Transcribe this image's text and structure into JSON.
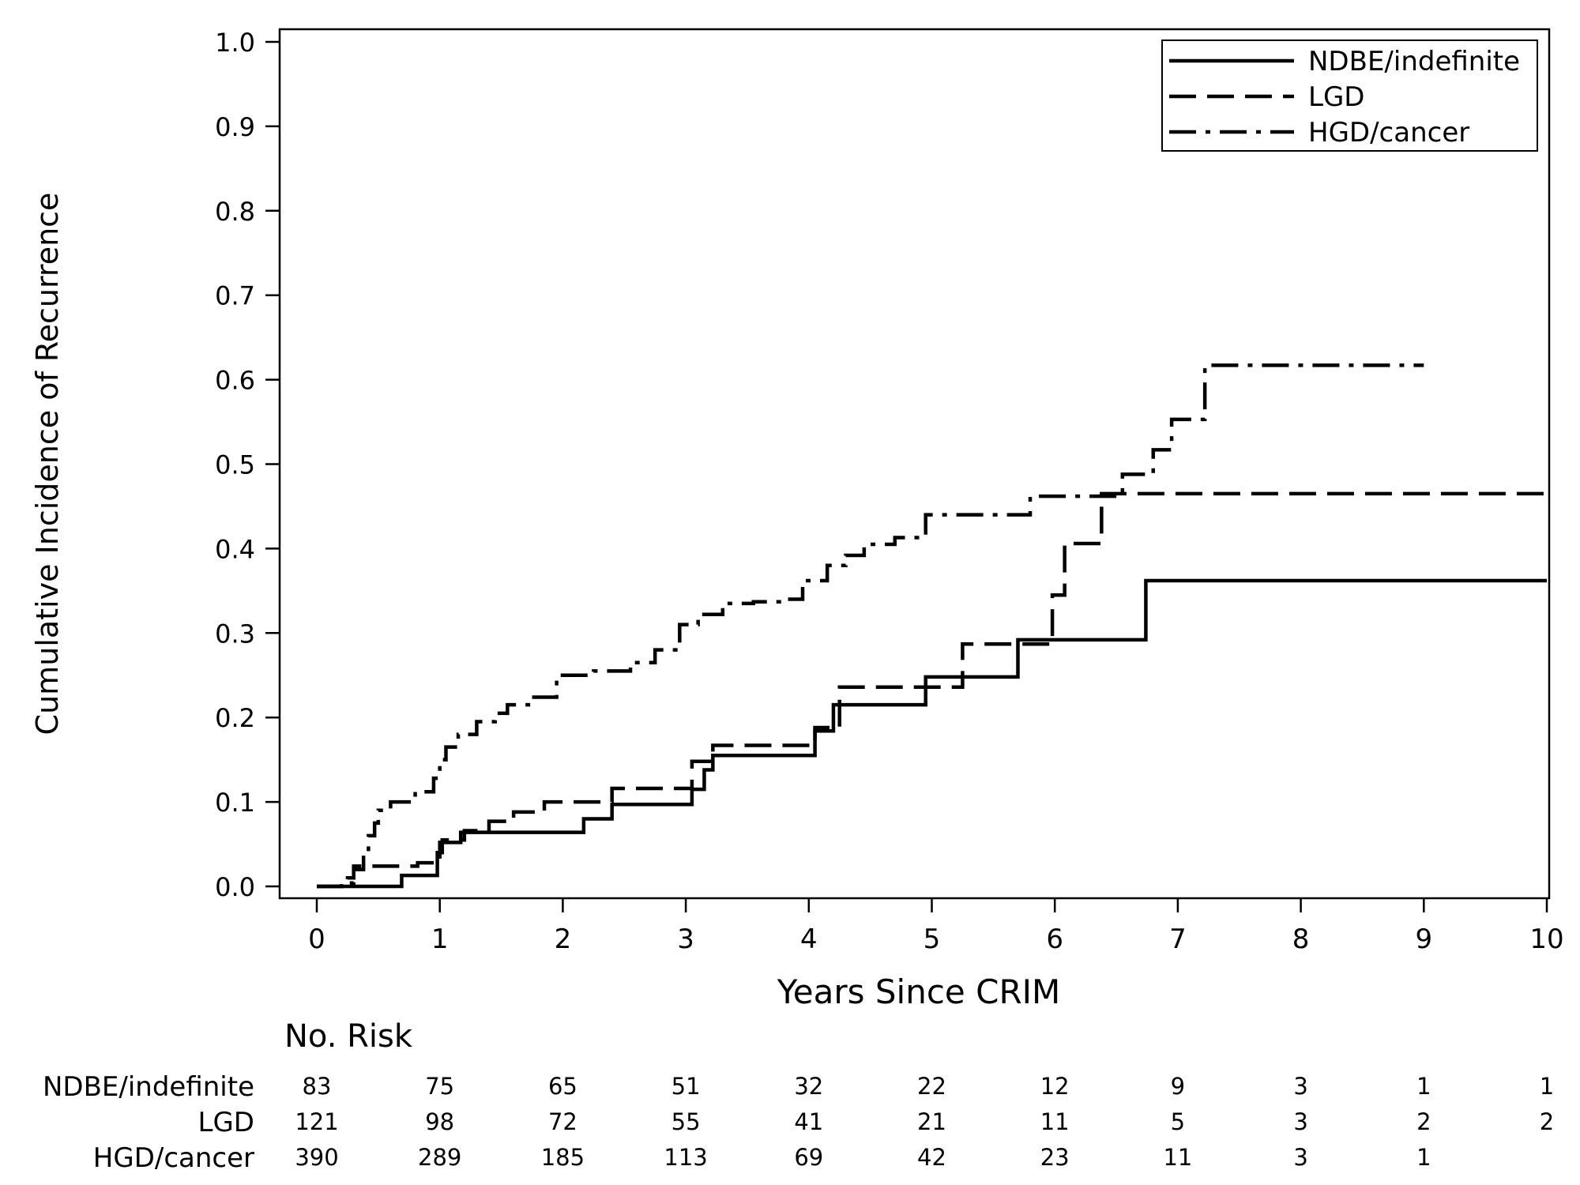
{
  "chart_data": {
    "type": "line",
    "step": true,
    "xlabel": "Years Since CRIM",
    "ylabel": "Cumulative Incidence of Recurrence",
    "xlim": [
      0,
      10
    ],
    "ylim": [
      0,
      1
    ],
    "xticks": [
      "0",
      "1",
      "2",
      "3",
      "4",
      "5",
      "6",
      "7",
      "8",
      "9",
      "10"
    ],
    "yticks": [
      "0.0",
      "0.1",
      "0.2",
      "0.3",
      "0.4",
      "0.5",
      "0.6",
      "0.7",
      "0.8",
      "0.9",
      "1.0"
    ],
    "grid": false,
    "legend_position": "top-right",
    "series": [
      {
        "name": "NDBE/indefinite",
        "dash": "solid",
        "points": [
          [
            0,
            0
          ],
          [
            0.69,
            0.013
          ],
          [
            0.98,
            0.035
          ],
          [
            1.0,
            0.052
          ],
          [
            1.17,
            0.064
          ],
          [
            1.39,
            0.064
          ],
          [
            2.17,
            0.08
          ],
          [
            2.4,
            0.097
          ],
          [
            3.05,
            0.115
          ],
          [
            3.15,
            0.138
          ],
          [
            3.22,
            0.155
          ],
          [
            4.05,
            0.184
          ],
          [
            4.2,
            0.215
          ],
          [
            4.95,
            0.248
          ],
          [
            5.7,
            0.292
          ],
          [
            6.74,
            0.362
          ],
          [
            10.0,
            0.362
          ]
        ]
      },
      {
        "name": "LGD",
        "dash": "dashed",
        "points": [
          [
            0,
            0
          ],
          [
            0.25,
            0.01
          ],
          [
            0.3,
            0.024
          ],
          [
            0.6,
            0.024
          ],
          [
            0.82,
            0.028
          ],
          [
            0.98,
            0.04
          ],
          [
            1.02,
            0.055
          ],
          [
            1.2,
            0.066
          ],
          [
            1.4,
            0.077
          ],
          [
            1.6,
            0.088
          ],
          [
            1.85,
            0.1
          ],
          [
            2.4,
            0.116
          ],
          [
            3.05,
            0.148
          ],
          [
            3.22,
            0.167
          ],
          [
            4.05,
            0.188
          ],
          [
            4.25,
            0.236
          ],
          [
            5.25,
            0.287
          ],
          [
            5.98,
            0.345
          ],
          [
            6.08,
            0.406
          ],
          [
            6.38,
            0.465
          ],
          [
            10.0,
            0.465
          ]
        ]
      },
      {
        "name": "HGD/cancer",
        "dash": "dashdot",
        "points": [
          [
            0,
            0
          ],
          [
            0.2,
            0.004
          ],
          [
            0.3,
            0.02
          ],
          [
            0.38,
            0.04
          ],
          [
            0.42,
            0.06
          ],
          [
            0.47,
            0.075
          ],
          [
            0.5,
            0.09
          ],
          [
            0.6,
            0.1
          ],
          [
            0.8,
            0.112
          ],
          [
            0.95,
            0.128
          ],
          [
            1.0,
            0.15
          ],
          [
            1.05,
            0.165
          ],
          [
            1.15,
            0.18
          ],
          [
            1.3,
            0.195
          ],
          [
            1.45,
            0.205
          ],
          [
            1.55,
            0.215
          ],
          [
            1.75,
            0.224
          ],
          [
            1.95,
            0.25
          ],
          [
            2.25,
            0.255
          ],
          [
            2.55,
            0.265
          ],
          [
            2.75,
            0.28
          ],
          [
            2.95,
            0.31
          ],
          [
            3.1,
            0.322
          ],
          [
            3.3,
            0.335
          ],
          [
            3.55,
            0.337
          ],
          [
            3.8,
            0.34
          ],
          [
            3.95,
            0.362
          ],
          [
            4.15,
            0.38
          ],
          [
            4.3,
            0.392
          ],
          [
            4.45,
            0.405
          ],
          [
            4.7,
            0.413
          ],
          [
            4.95,
            0.44
          ],
          [
            5.8,
            0.462
          ],
          [
            6.55,
            0.488
          ],
          [
            6.8,
            0.517
          ],
          [
            6.95,
            0.553
          ],
          [
            7.22,
            0.617
          ],
          [
            9.0,
            0.617
          ]
        ]
      }
    ],
    "risk_table": {
      "title": "No. Risk",
      "times": [
        "0",
        "1",
        "2",
        "3",
        "4",
        "5",
        "6",
        "7",
        "8",
        "9",
        "10"
      ],
      "rows": [
        {
          "label": "NDBE/indefinite",
          "values": [
            "83",
            "75",
            "65",
            "51",
            "32",
            "22",
            "12",
            "9",
            "3",
            "1",
            "1"
          ]
        },
        {
          "label": "LGD",
          "values": [
            "121",
            "98",
            "72",
            "55",
            "41",
            "21",
            "11",
            "5",
            "3",
            "2",
            "2"
          ]
        },
        {
          "label": "HGD/cancer",
          "values": [
            "390",
            "289",
            "185",
            "113",
            "69",
            "42",
            "23",
            "11",
            "3",
            "1",
            ""
          ]
        }
      ]
    }
  }
}
